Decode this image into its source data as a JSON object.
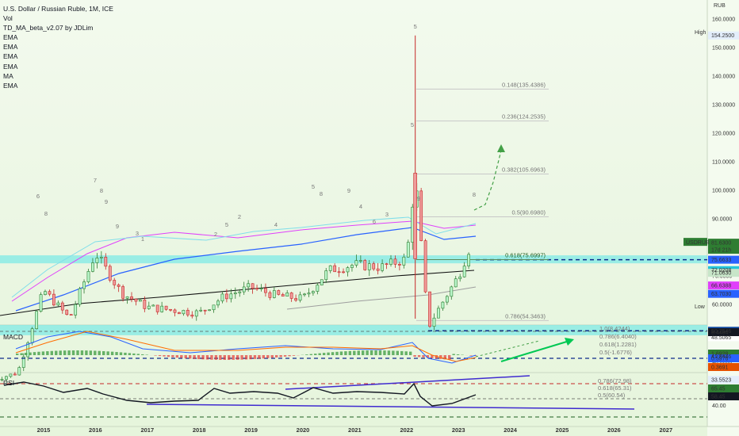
{
  "header": {
    "symbol_title": "U.S. Dollar / Russian Ruble, 1M, ICE",
    "indicators": [
      "Vol",
      "TD_MA_beta_v2.07 by JDLim",
      "EMA",
      "EMA",
      "EMA",
      "EMA",
      "MA",
      "EMA"
    ]
  },
  "panes": {
    "macd_label": "MACD",
    "rsi_label": "RSI"
  },
  "price_axis": {
    "currency": "RUB",
    "ticks": [
      "160.0000",
      "150.0000",
      "140.0000",
      "130.0000",
      "120.0000",
      "110.0000",
      "100.0000",
      "90.0000",
      "80.0000",
      "70.0000",
      "60.0000",
      "50.0000",
      "40.0000",
      "30.0000"
    ],
    "high_label": "High",
    "high_value": "154.2500",
    "low_label": "Low",
    "low_value": "33.5523",
    "symbol_tag": "USDRUB",
    "last_price": "81.6300",
    "countdown": "17d 21h",
    "tags": [
      {
        "value": "75.6633",
        "color": "#2962ff",
        "text": "#ffffff"
      },
      {
        "value": "72.0208",
        "color": "#26c6da",
        "text": "#ffffff"
      },
      {
        "value": "71.0630",
        "color": "#c8e6c9",
        "text": "#131722"
      },
      {
        "value": "66.6388",
        "color": "#e040fb",
        "text": "#ffffff"
      },
      {
        "value": "63.7030",
        "color": "#2962ff",
        "text": "#ffffff"
      },
      {
        "value": "50.7546",
        "color": "#0d47a1",
        "text": "#ffffff"
      },
      {
        "value": "48.5065",
        "color": "#ffffff",
        "text": "#131722"
      },
      {
        "value": "41.8446",
        "color": "#5d5d5d",
        "text": "#ffffff"
      }
    ],
    "macd_tags": [
      {
        "value": "8.4484",
        "color": "#131722",
        "text": "#ffffff"
      },
      {
        "value": "1.6928",
        "color": "#2e7d32",
        "text": "#ffffff"
      },
      {
        "value": "0.5976",
        "color": "#2962ff",
        "text": "#ffffff"
      },
      {
        "value": "0.3691",
        "color": "#e65100",
        "text": "#ffffff"
      }
    ],
    "rsi_tags": [
      {
        "value": "65.45",
        "color": "#2e7d32",
        "text": "#ffffff"
      },
      {
        "value": "58.45",
        "color": "#131722",
        "text": "#ffffff"
      }
    ],
    "rsi_tick": "40.00"
  },
  "time_axis": [
    "2015",
    "2016",
    "2017",
    "2018",
    "2019",
    "2020",
    "2021",
    "2022",
    "2023",
    "2024",
    "2025",
    "2026",
    "2027"
  ],
  "fib_levels": [
    {
      "label": "0.148(135.4386)",
      "price": 135.4386
    },
    {
      "label": "0.236(124.2535)",
      "price": 124.2535
    },
    {
      "label": "0.382(105.6963)",
      "price": 105.6963
    },
    {
      "label": "0.5(90.6980)",
      "price": 90.698
    },
    {
      "label": "0.618(75.6997)",
      "price": 75.6997
    },
    {
      "label": "0.786(54.3463)",
      "price": 54.3463
    }
  ],
  "macd_fib_labels": [
    "1.0(8.4244)",
    "0.786(6.4040)",
    "0.618(1.2281)",
    "0.5(-1.6776)"
  ],
  "rsi_fib_labels": [
    "0.786(72.98)",
    "0.618(65.31)",
    "0.5(60.54)"
  ],
  "td_counts": [
    "6",
    "8",
    "7",
    "8",
    "9",
    "9",
    "3",
    "1",
    "2",
    "5",
    "2",
    "4",
    "5",
    "8",
    "9",
    "4",
    "6",
    "3",
    "5",
    "9",
    "8"
  ],
  "chart_data": {
    "type": "line",
    "symbol": "USDRUB",
    "timeframe": "1M",
    "ylim": [
      30,
      162
    ],
    "x": [
      "2014-01",
      "2014-07",
      "2015-01",
      "2015-07",
      "2016-01",
      "2016-07",
      "2017-01",
      "2017-07",
      "2018-01",
      "2018-07",
      "2019-01",
      "2019-07",
      "2020-01",
      "2020-07",
      "2021-01",
      "2021-07",
      "2022-01",
      "2022-03",
      "2022-06",
      "2022-09",
      "2023-01",
      "2023-04"
    ],
    "series": [
      {
        "name": "USDRUB",
        "values": [
          33.5,
          36,
          65,
          55,
          78,
          64,
          59,
          58,
          57,
          63,
          66,
          63,
          62,
          72,
          74,
          73,
          76,
          105,
          52,
          60,
          70,
          81.63
        ]
      }
    ],
    "high": 154.25,
    "low": 33.5523,
    "last": 81.63
  }
}
